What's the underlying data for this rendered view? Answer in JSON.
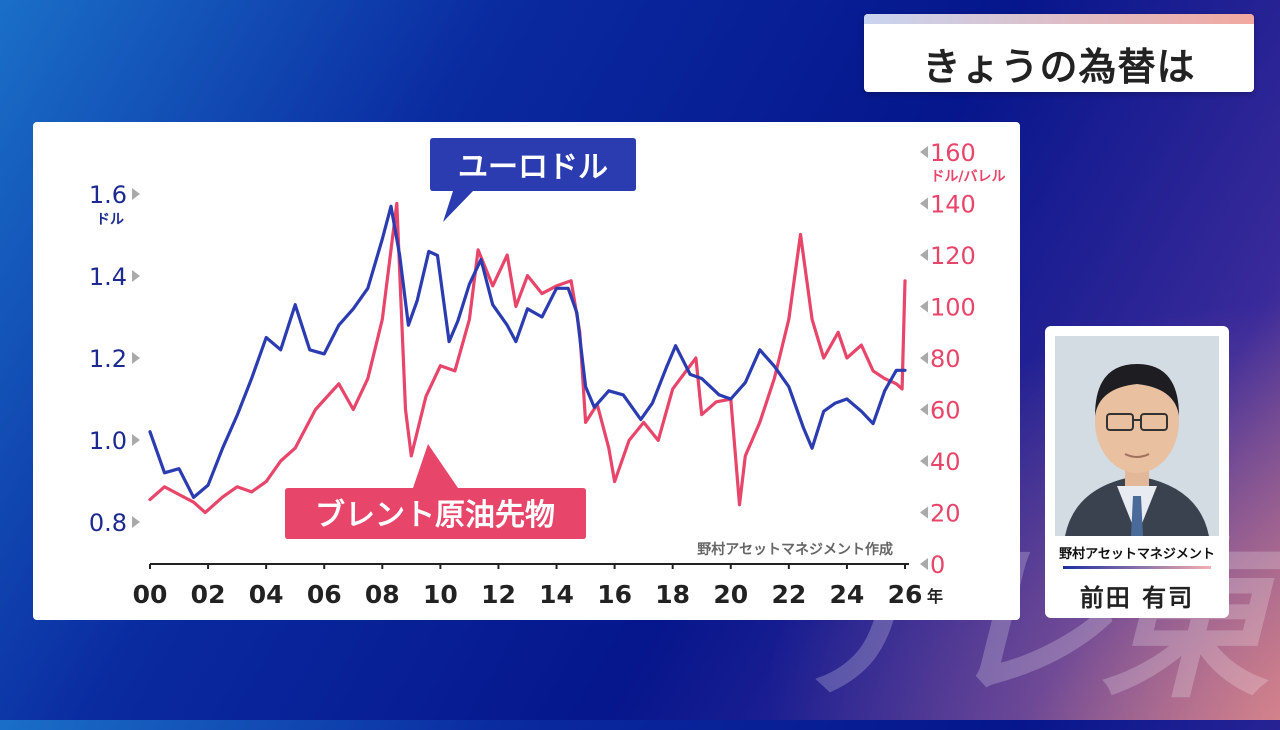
{
  "screen_title": "きょうの為替は",
  "watermark": "テレ東",
  "person": {
    "company": "野村アセットマネジメント",
    "name": "前田 有司"
  },
  "colors": {
    "euro_usd": "#2b3cb0",
    "brent": "#e8456a",
    "title_gradient_start": "#c8d4f0",
    "title_gradient_end": "#f2a8a0"
  },
  "chart_data": {
    "type": "line",
    "source_note": "野村アセットマネジメント作成",
    "x_unit": "年",
    "x_ticks": [
      "00",
      "02",
      "04",
      "06",
      "08",
      "10",
      "12",
      "14",
      "16",
      "18",
      "20",
      "22",
      "24",
      "26"
    ],
    "xlim": [
      2000,
      2026
    ],
    "left_axis": {
      "unit": "ドル",
      "ticks": [
        "0.8",
        "1.0",
        "1.2",
        "1.4",
        "1.6"
      ],
      "ylim": [
        0.75,
        1.65
      ]
    },
    "right_axis": {
      "unit": "ドル/バレル",
      "ticks": [
        "0",
        "20",
        "40",
        "60",
        "80",
        "100",
        "120",
        "140",
        "160"
      ],
      "ylim": [
        0,
        160
      ]
    },
    "series": [
      {
        "name": "ユーロドル",
        "axis": "left",
        "x": [
          2000.0,
          2000.5,
          2001.0,
          2001.5,
          2002.0,
          2002.5,
          2003.0,
          2003.5,
          2004.0,
          2004.5,
          2005.0,
          2005.5,
          2006.0,
          2006.5,
          2007.0,
          2007.5,
          2008.0,
          2008.3,
          2008.6,
          2008.9,
          2009.2,
          2009.6,
          2009.9,
          2010.3,
          2010.6,
          2011.0,
          2011.4,
          2011.8,
          2012.3,
          2012.6,
          2013.0,
          2013.5,
          2014.0,
          2014.4,
          2014.7,
          2015.0,
          2015.3,
          2015.8,
          2016.3,
          2016.9,
          2017.3,
          2017.8,
          2018.1,
          2018.6,
          2019.0,
          2019.6,
          2020.0,
          2020.5,
          2021.0,
          2021.5,
          2022.0,
          2022.5,
          2022.8,
          2023.2,
          2023.6,
          2024.0,
          2024.5,
          2024.9,
          2025.3,
          2025.7,
          2026.0
        ],
        "values": [
          1.02,
          0.92,
          0.93,
          0.86,
          0.89,
          0.98,
          1.06,
          1.15,
          1.25,
          1.22,
          1.33,
          1.22,
          1.21,
          1.28,
          1.32,
          1.37,
          1.49,
          1.57,
          1.45,
          1.28,
          1.34,
          1.46,
          1.45,
          1.24,
          1.29,
          1.38,
          1.44,
          1.33,
          1.28,
          1.24,
          1.32,
          1.3,
          1.37,
          1.37,
          1.31,
          1.13,
          1.08,
          1.12,
          1.11,
          1.05,
          1.09,
          1.18,
          1.23,
          1.16,
          1.15,
          1.11,
          1.1,
          1.14,
          1.22,
          1.18,
          1.13,
          1.03,
          0.98,
          1.07,
          1.09,
          1.1,
          1.07,
          1.04,
          1.12,
          1.17,
          1.17
        ]
      },
      {
        "name": "ブレント原油先物",
        "axis": "right",
        "x": [
          2000.0,
          2000.5,
          2001.0,
          2001.5,
          2001.9,
          2002.5,
          2003.0,
          2003.5,
          2004.0,
          2004.5,
          2005.0,
          2005.7,
          2006.5,
          2007.0,
          2007.5,
          2008.0,
          2008.5,
          2008.8,
          2009.0,
          2009.5,
          2010.0,
          2010.5,
          2011.0,
          2011.3,
          2011.8,
          2012.3,
          2012.6,
          2013.0,
          2013.5,
          2014.0,
          2014.5,
          2014.8,
          2015.0,
          2015.4,
          2015.8,
          2016.0,
          2016.5,
          2017.0,
          2017.5,
          2018.0,
          2018.8,
          2019.0,
          2019.5,
          2020.0,
          2020.3,
          2020.5,
          2021.0,
          2021.5,
          2022.0,
          2022.4,
          2022.8,
          2023.2,
          2023.7,
          2024.0,
          2024.5,
          2024.9,
          2025.3,
          2025.7,
          2025.9,
          2026.0
        ],
        "values": [
          25,
          30,
          27,
          24,
          20,
          26,
          30,
          28,
          32,
          40,
          45,
          60,
          70,
          60,
          72,
          95,
          140,
          60,
          42,
          65,
          77,
          75,
          95,
          122,
          108,
          120,
          100,
          112,
          105,
          108,
          110,
          90,
          55,
          62,
          45,
          32,
          48,
          55,
          48,
          68,
          80,
          58,
          63,
          64,
          23,
          42,
          55,
          72,
          95,
          128,
          95,
          80,
          90,
          80,
          85,
          75,
          72,
          70,
          68,
          110
        ]
      }
    ],
    "annotations": [
      "ユーロドル",
      "ブレント原油先物"
    ]
  }
}
